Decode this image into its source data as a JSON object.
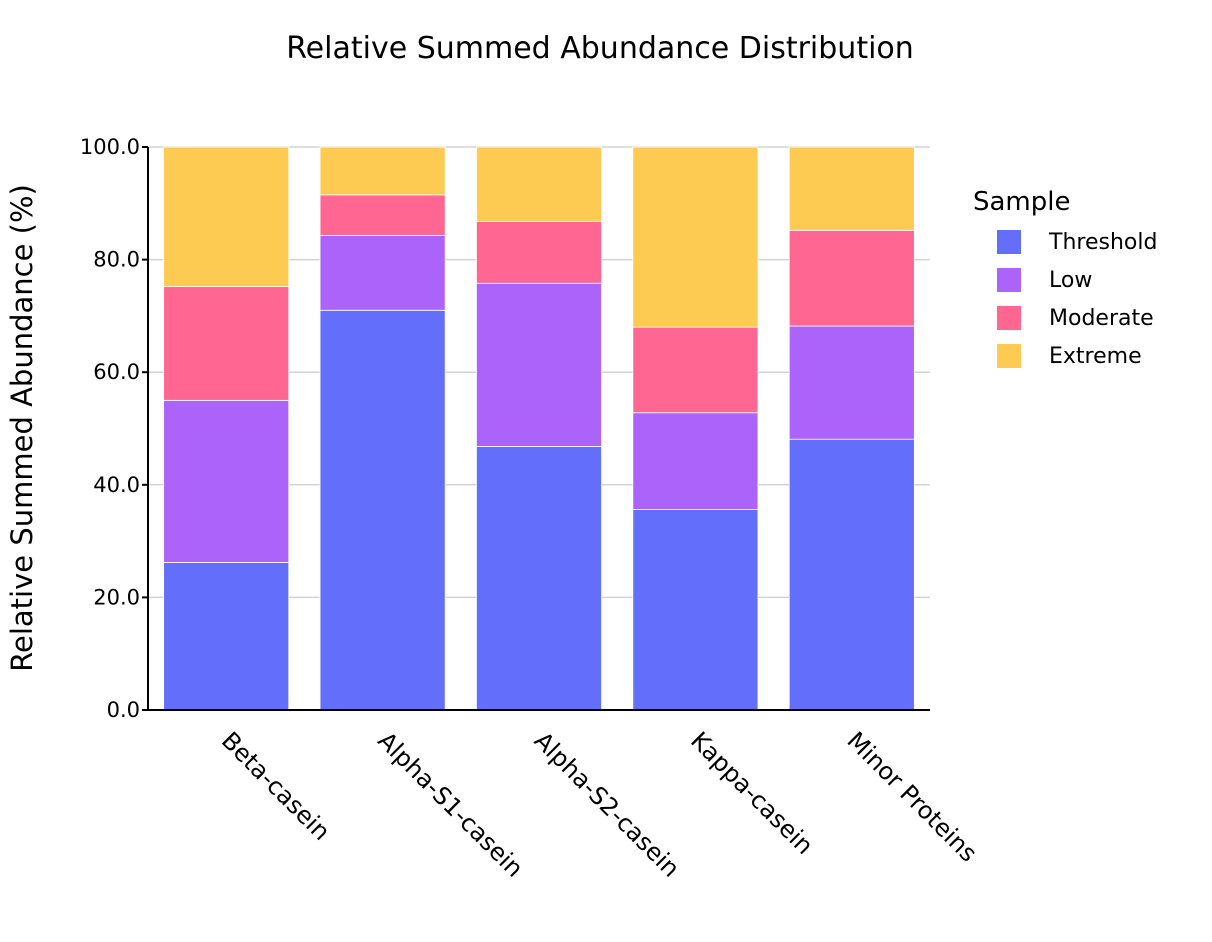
{
  "chart_data": {
    "type": "bar",
    "stacked": true,
    "title": "Relative Summed Abundance Distribution",
    "xlabel": "",
    "ylabel": "Relative Summed Abundance (%)",
    "ylim": [
      0,
      100
    ],
    "yticks": [
      "0.0",
      "20.0",
      "40.0",
      "60.0",
      "80.0",
      "100.0"
    ],
    "ytick_values": [
      0,
      20,
      40,
      60,
      80,
      100
    ],
    "grid": true,
    "legend_title": "Sample",
    "legend_position": "right",
    "categories": [
      "Beta-casein",
      "Alpha-S1-casein",
      "Alpha-S2-casein",
      "Kappa-casein",
      "Minor Proteins"
    ],
    "series": [
      {
        "name": "Threshold",
        "color": "#636efa",
        "values": [
          26.2,
          71.0,
          46.8,
          35.6,
          48.1
        ]
      },
      {
        "name": "Low",
        "color": "#ab63fa",
        "values": [
          28.8,
          13.3,
          29.0,
          17.2,
          20.1
        ]
      },
      {
        "name": "Moderate",
        "color": "#ff6692",
        "values": [
          20.2,
          7.2,
          11.0,
          15.2,
          17.0
        ]
      },
      {
        "name": "Extreme",
        "color": "#fecb52",
        "values": [
          24.8,
          8.5,
          13.2,
          32.0,
          14.8
        ]
      }
    ]
  }
}
